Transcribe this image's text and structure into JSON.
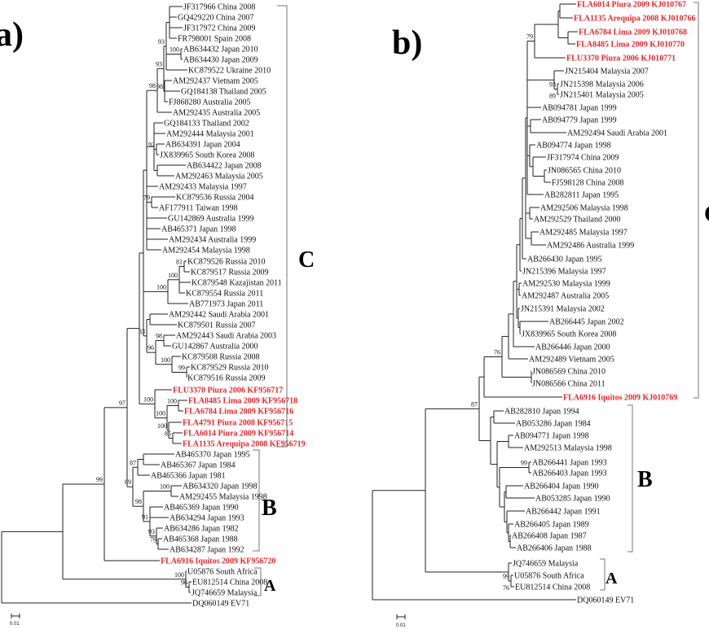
{
  "highlight_color": "#e8262b",
  "panel_a": {
    "title": "a)",
    "scale_label": "0.01",
    "clades": {
      "C": "C",
      "B": "B",
      "A": "A"
    },
    "leaves": [
      {
        "label": "JF317966 China 2008",
        "hl": false
      },
      {
        "label": "GQ429220 China 2007",
        "hl": false
      },
      {
        "label": "JF317972 China 2009",
        "hl": false
      },
      {
        "label": "FR798001 Spain 2008",
        "hl": false
      },
      {
        "label": "AB634432 Japan 2010",
        "hl": false
      },
      {
        "label": "AB634430 Japan 2009",
        "hl": false
      },
      {
        "label": "KC879522 Ukraine 2010",
        "hl": false
      },
      {
        "label": "AM292437 Vietnam 2005",
        "hl": false
      },
      {
        "label": "GQ184138 Thailand 2005",
        "hl": false
      },
      {
        "label": "FJ868280 Australia 2005",
        "hl": false
      },
      {
        "label": "AM292435 Australia 2005",
        "hl": false
      },
      {
        "label": "GQ184133 Thailand 2002",
        "hl": false
      },
      {
        "label": "AM292444 Malaysia 2001",
        "hl": false
      },
      {
        "label": "AB634391 Japan 2004",
        "hl": false
      },
      {
        "label": "JX839965 South Korea 2008",
        "hl": false
      },
      {
        "label": "AB634422 Japan 2008",
        "hl": false
      },
      {
        "label": "AM292463 Malaysia 2005",
        "hl": false
      },
      {
        "label": "AM292433 Malaysia 1997",
        "hl": false
      },
      {
        "label": "KC879536 Russia 2004",
        "hl": false
      },
      {
        "label": "AF177911 Taiwan 1998",
        "hl": false
      },
      {
        "label": "GU142869 Australia 1999",
        "hl": false
      },
      {
        "label": "AB465371 Japan 1998",
        "hl": false
      },
      {
        "label": "AM292434 Australia 1999",
        "hl": false
      },
      {
        "label": "AM292454 Malaysia 1998",
        "hl": false
      },
      {
        "label": "KC879526 Russia 2010",
        "hl": false
      },
      {
        "label": "KC879517 Russia 2009",
        "hl": false
      },
      {
        "label": "KC879548 Kazajistan 2011",
        "hl": false
      },
      {
        "label": "KC879554 Russia 2011",
        "hl": false
      },
      {
        "label": "AB771973 Japan 2011",
        "hl": false
      },
      {
        "label": "AM292442 Saudi Arabia 2001",
        "hl": false
      },
      {
        "label": "KC879501 Russia 2007",
        "hl": false
      },
      {
        "label": "AM292443 Saudi Arabia 2003",
        "hl": false
      },
      {
        "label": "GU142867 Australia 2000",
        "hl": false
      },
      {
        "label": "KC879508 Russia 2008",
        "hl": false
      },
      {
        "label": "KC879529 Russia 2010",
        "hl": false
      },
      {
        "label": "KC879516 Russia 2009",
        "hl": false
      },
      {
        "label": "FLU3370 Piura 2006 KF956717",
        "hl": true
      },
      {
        "label": "FLA8485 Lima 2009 KF956718",
        "hl": true
      },
      {
        "label": "FLA6784 Lima 2009 KF956716",
        "hl": true
      },
      {
        "label": "FLA4791 Piura 2008  KF956715",
        "hl": true
      },
      {
        "label": "FLA6014 Piura 2009 KF956714",
        "hl": true
      },
      {
        "label": "FLA1135 Arequipa 2008 KF956719",
        "hl": true
      },
      {
        "label": "AB465370 Japan 1995",
        "hl": false
      },
      {
        "label": "AB465367 Japan 1984",
        "hl": false
      },
      {
        "label": "AB465366 Japan 1981",
        "hl": false
      },
      {
        "label": "AB634320 Japan 1998",
        "hl": false
      },
      {
        "label": "AM292455 Malaysia 1998",
        "hl": false
      },
      {
        "label": "AB465369 Japan 1990",
        "hl": false
      },
      {
        "label": "AB634294 Japan 1993",
        "hl": false
      },
      {
        "label": "AB634286 Japan 1982",
        "hl": false
      },
      {
        "label": "AB465368 Japan 1988",
        "hl": false
      },
      {
        "label": "AB634287 Japan 1992",
        "hl": false
      },
      {
        "label": "FLA6916 Iquitos 2009 KF956720",
        "hl": true
      },
      {
        "label": "U05876 South Africa",
        "hl": false
      },
      {
        "label": "EU812514 China 2008",
        "hl": false
      },
      {
        "label": "JQ746659 Malaysia",
        "hl": false
      },
      {
        "label": "DQ060149 EV71",
        "hl": false
      }
    ],
    "bootstrap": [
      "100",
      "96",
      "99",
      "97",
      "98",
      "93",
      "93",
      "100",
      "98",
      "92",
      "79",
      "100",
      "100",
      "81",
      "83",
      "96",
      "98",
      "100",
      "99",
      "100",
      "100",
      "100",
      "100",
      "85",
      "89",
      "87",
      "98",
      "100",
      "91",
      "93",
      "76"
    ]
  },
  "panel_b": {
    "title": "b)",
    "scale_label": "0.01",
    "clades": {
      "C": "C",
      "B": "B",
      "A": "A"
    },
    "leaves": [
      {
        "label": "FLA6014 Piura 2009 KJ010767",
        "hl": true
      },
      {
        "label": "FLA1135 Arequipa 2008 KJ010766",
        "hl": true
      },
      {
        "label": "FLA6784 Lima 2009 KJ010768",
        "hl": true
      },
      {
        "label": "FLA8485 Lima 2009 KJ010770",
        "hl": true
      },
      {
        "label": "FLU3370 Piura 2006 KJ010771",
        "hl": true
      },
      {
        "label": "JN215404 Malaysia 2007",
        "hl": false
      },
      {
        "label": "JN215398 Malaysia 2006",
        "hl": false
      },
      {
        "label": "JN215401 Malaysia 2005",
        "hl": false
      },
      {
        "label": "AB094781 Japan 1999",
        "hl": false
      },
      {
        "label": "AB094779 Japan 1999",
        "hl": false
      },
      {
        "label": "AM292494 Saudi Arabia 2001",
        "hl": false
      },
      {
        "label": "AB094774 Japan 1998",
        "hl": false
      },
      {
        "label": "JF317974 China 2009",
        "hl": false
      },
      {
        "label": "JN086565 China 2010",
        "hl": false
      },
      {
        "label": "FJ598128 China 2008",
        "hl": false
      },
      {
        "label": "AB282811 Japan 1995",
        "hl": false
      },
      {
        "label": "AM292506 Malaysia 1998",
        "hl": false
      },
      {
        "label": "AM292529 Thailand 2000",
        "hl": false
      },
      {
        "label": "AM292485 Malaysia 1997",
        "hl": false
      },
      {
        "label": "AM292486 Australia 1999",
        "hl": false
      },
      {
        "label": "AB266430 Japan 1995",
        "hl": false
      },
      {
        "label": "JN215396 Malaysia 1997",
        "hl": false
      },
      {
        "label": "AM292530 Malaysia 1999",
        "hl": false
      },
      {
        "label": "AM292487 Australia 2005",
        "hl": false
      },
      {
        "label": "JN215391 Malaysia 2002",
        "hl": false
      },
      {
        "label": "AB266445 Japan 2002",
        "hl": false
      },
      {
        "label": "JX839965 South Korea 2008",
        "hl": false
      },
      {
        "label": "AB266446 Japan 2000",
        "hl": false
      },
      {
        "label": "AM292489 Vietnam 2005",
        "hl": false
      },
      {
        "label": "JN086569 China 2010",
        "hl": false
      },
      {
        "label": "JN086566 China 2011",
        "hl": false
      },
      {
        "label": "FLA6916 Iquitos 2009 KJ010769",
        "hl": true
      },
      {
        "label": "AB282810 Japan 1994",
        "hl": false
      },
      {
        "label": "AB053286 Japan 1984",
        "hl": false
      },
      {
        "label": "AB094771 Japan 1998",
        "hl": false
      },
      {
        "label": "AM292513 Malaysia 1998",
        "hl": false
      },
      {
        "label": "AB266441 Japan 1993",
        "hl": false
      },
      {
        "label": "AB266403 Japan 1993",
        "hl": false
      },
      {
        "label": "AB266404 Japan 1990",
        "hl": false
      },
      {
        "label": "AB053285 Japan 1990",
        "hl": false
      },
      {
        "label": "AB266442 Japan 1991",
        "hl": false
      },
      {
        "label": "AB266405 Japan 1989",
        "hl": false
      },
      {
        "label": "AB266408 Japan 1987",
        "hl": false
      },
      {
        "label": "AB266406 Japan 1988",
        "hl": false
      },
      {
        "label": "JQ746659 Malaysia",
        "hl": false
      },
      {
        "label": "U05876 South Africa",
        "hl": false
      },
      {
        "label": "EU812514 China 2008",
        "hl": false
      },
      {
        "label": "DQ060149 EV71",
        "hl": false
      }
    ],
    "bootstrap": [
      "79",
      "93",
      "89",
      "76",
      "87",
      "99",
      "99",
      "76"
    ]
  }
}
